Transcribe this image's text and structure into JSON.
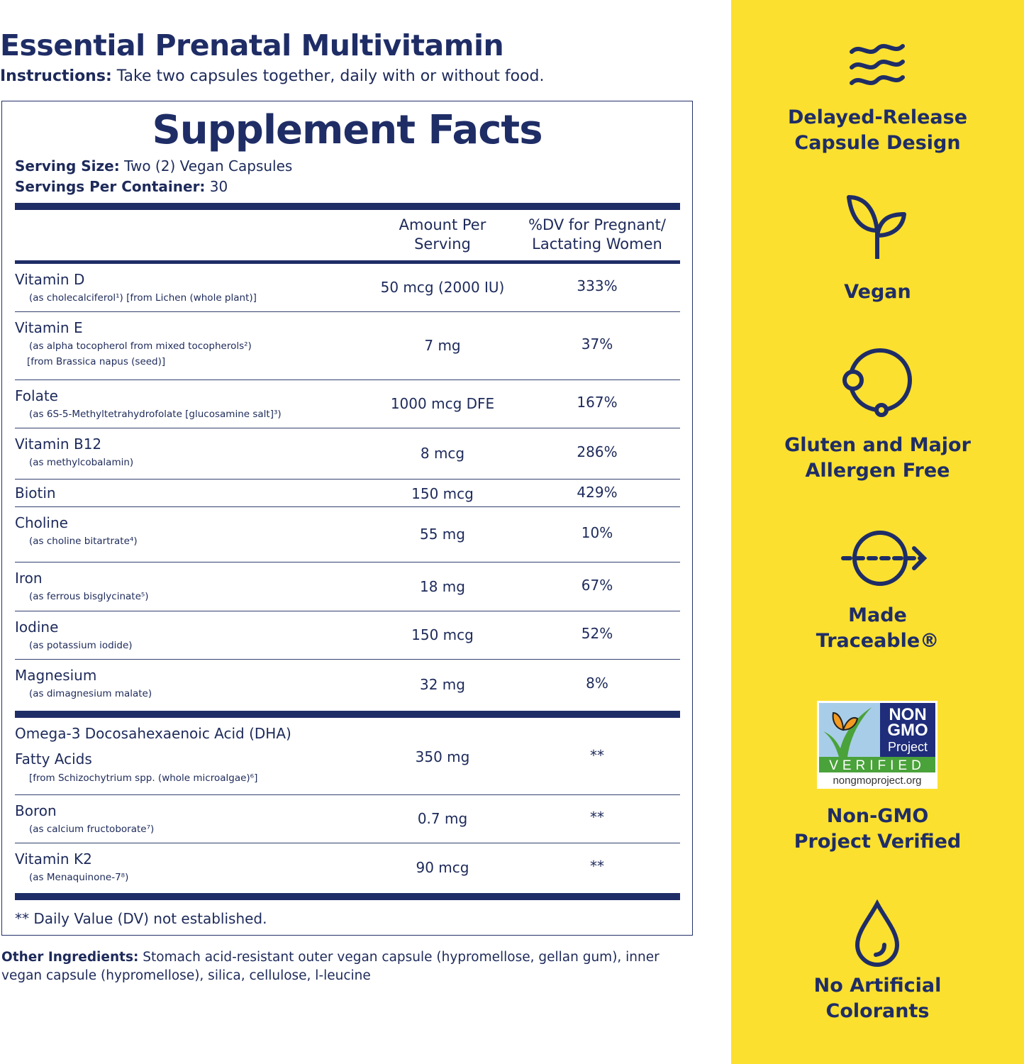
{
  "title": "Essential Prenatal Multivitamin",
  "instructions": {
    "label": "Instructions:",
    "text": " Take two capsules together, daily with or without food."
  },
  "facts": {
    "heading": "Supplement Facts",
    "serving_size_label": "Serving Size:",
    "serving_size": " Two (2) Vegan Capsules",
    "servings_label": "Servings Per Container:",
    "servings": " 30",
    "col_amount": [
      "Amount Per",
      "Serving"
    ],
    "col_dv": [
      "%DV for Pregnant/",
      "Lactating Women"
    ],
    "group1": [
      {
        "name": "Vitamin D",
        "sub": [
          "(as cholecalciferol¹) [from Lichen (whole plant)]"
        ],
        "amount": "50 mcg (2000 IU)",
        "dv": "333%"
      },
      {
        "name": "Vitamin E",
        "sub": [
          "(as alpha tocopherol from mixed tocopherols²)",
          "[from Brassica napus (seed)]"
        ],
        "amount": "7 mg",
        "dv": "37%"
      },
      {
        "name": "Folate",
        "sub": [
          "(as 6S-5-Methyltetrahydrofolate [glucosamine salt]³)"
        ],
        "amount": "1000 mcg DFE",
        "dv": "167%"
      },
      {
        "name": "Vitamin B12",
        "sub": [
          "(as methylcobalamin)"
        ],
        "amount": "8 mcg",
        "dv": "286%"
      },
      {
        "name": "Biotin",
        "sub": [],
        "amount": "150 mcg",
        "dv": "429%"
      },
      {
        "name": "Choline",
        "sub": [
          "(as choline bitartrate⁴)"
        ],
        "amount": "55 mg",
        "dv": "10%"
      },
      {
        "name": "Iron",
        "sub": [
          "(as ferrous bisglycinate⁵)"
        ],
        "amount": "18 mg",
        "dv": "67%"
      },
      {
        "name": "Iodine",
        "sub": [
          "(as potassium iodide)"
        ],
        "amount": "150 mcg",
        "dv": "52%"
      },
      {
        "name": "Magnesium",
        "sub": [
          "(as dimagnesium malate)"
        ],
        "amount": "32 mg",
        "dv": "8%"
      }
    ],
    "group2": [
      {
        "name": "Omega-3 Docosahexaenoic Acid (DHA)",
        "name2": "Fatty Acids",
        "sub": [
          "[from Schizochytrium spp. (whole microalgae)⁶]"
        ],
        "amount": "350 mg",
        "dv": "**"
      },
      {
        "name": "Boron",
        "sub": [
          "(as calcium fructoborate⁷)"
        ],
        "amount": "0.7 mg",
        "dv": "**"
      },
      {
        "name": "Vitamin K2",
        "sub": [
          "(as Menaquinone-7⁸)"
        ],
        "amount": "90 mcg",
        "dv": "**"
      }
    ],
    "footnote": "** Daily Value (DV) not established."
  },
  "other": {
    "label": "Other Ingredients:",
    "text": " Stomach acid-resistant outer vegan capsule (hypromellose, gellan gum), inner vegan capsule (hypromellose),  silica, cellulose, l-leucine"
  },
  "features": [
    {
      "icon": "waves-icon",
      "lines": [
        "Delayed-Release",
        "Capsule Design"
      ]
    },
    {
      "icon": "sprout-icon",
      "lines": [
        "Vegan"
      ]
    },
    {
      "icon": "circle-node-icon",
      "lines": [
        "Gluten and Major",
        "Allergen Free"
      ]
    },
    {
      "icon": "traceable-arrow-icon",
      "lines": [
        "Made",
        "Traceable®"
      ]
    },
    {
      "icon": "non-gmo-badge",
      "lines": [
        "Non-GMO",
        "Project Verified"
      ]
    },
    {
      "icon": "droplet-icon",
      "lines": [
        "No Artificial",
        "Colorants"
      ]
    }
  ],
  "badge": {
    "line1": "NON",
    "line2": "GMO",
    "line3": "Project",
    "verified": "VERIFIED",
    "url": "nongmoproject.org"
  },
  "colors": {
    "navy": "#1f2d66",
    "yellow": "#fbe02f"
  }
}
